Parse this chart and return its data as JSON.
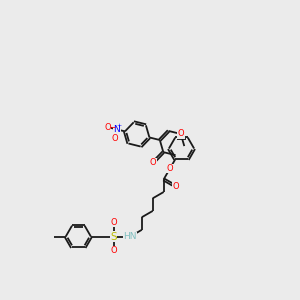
{
  "bg_color": "#ebebeb",
  "bond_color": "#1a1a1a",
  "oxygen_color": "#ff0000",
  "nitrogen_color": "#0000ff",
  "sulfur_color": "#bbbb00",
  "nh_color": "#7fbfbf",
  "lw": 1.3,
  "dbgap": 0.035,
  "r": 0.42,
  "figsize": [
    3.0,
    3.0
  ],
  "dpi": 100,
  "xlim": [
    0,
    10
  ],
  "ylim": [
    0,
    10
  ]
}
